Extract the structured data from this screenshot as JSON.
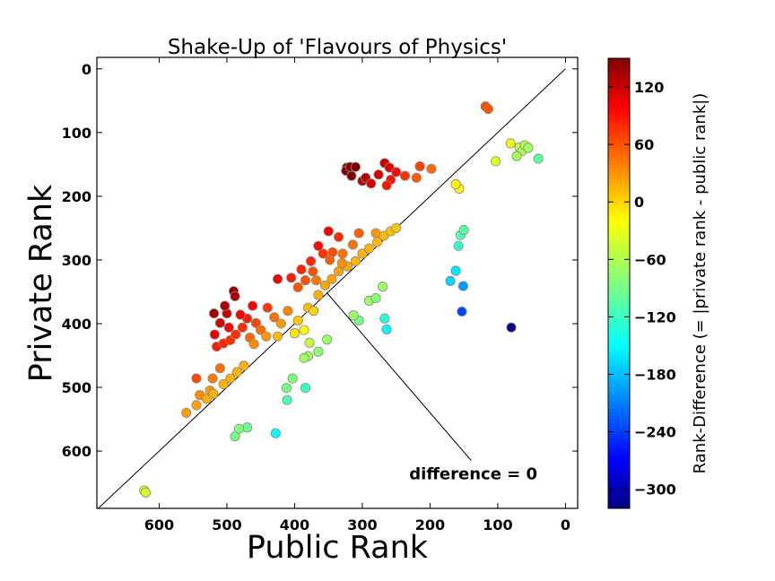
{
  "chart_data": {
    "type": "scatter",
    "title": "Shake-Up of 'Flavours of Physics'",
    "xlabel": "Public Rank",
    "ylabel": "Private Rank",
    "xlim": [
      692,
      -18
    ],
    "ylim": [
      690,
      -18
    ],
    "x_ticks": [
      600,
      500,
      400,
      300,
      200,
      100,
      0
    ],
    "y_ticks": [
      0,
      100,
      200,
      300,
      400,
      500,
      600
    ],
    "reference_line": {
      "label": "difference = 0",
      "from": [
        0,
        0
      ],
      "to": [
        692,
        692
      ]
    },
    "annotation": {
      "text": "difference = 0",
      "arrow_to": [
        352,
        352
      ],
      "text_at": [
        224,
        636
      ]
    },
    "colorbar": {
      "label": "Rank-Difference (= |private rank - public rank|)",
      "range": [
        -320,
        150
      ],
      "ticks": [
        120,
        60,
        0,
        -60,
        -120,
        -180,
        -240,
        -300
      ],
      "colormap": "jet"
    },
    "grid": false,
    "points": [
      {
        "x": 80,
        "y": 406
      },
      {
        "x": 153,
        "y": 381
      },
      {
        "x": 151,
        "y": 341
      },
      {
        "x": 162,
        "y": 317
      },
      {
        "x": 170,
        "y": 333
      },
      {
        "x": 155,
        "y": 261
      },
      {
        "x": 150,
        "y": 253
      },
      {
        "x": 158,
        "y": 278
      },
      {
        "x": 352,
        "y": 425
      },
      {
        "x": 428,
        "y": 572
      },
      {
        "x": 411,
        "y": 520
      },
      {
        "x": 412,
        "y": 501
      },
      {
        "x": 403,
        "y": 486
      },
      {
        "x": 384,
        "y": 501
      },
      {
        "x": 365,
        "y": 444
      },
      {
        "x": 380,
        "y": 451
      },
      {
        "x": 378,
        "y": 430
      },
      {
        "x": 386,
        "y": 454
      },
      {
        "x": 290,
        "y": 364
      },
      {
        "x": 264,
        "y": 409
      },
      {
        "x": 267,
        "y": 392
      },
      {
        "x": 305,
        "y": 395
      },
      {
        "x": 313,
        "y": 387
      },
      {
        "x": 280,
        "y": 360
      },
      {
        "x": 270,
        "y": 342
      },
      {
        "x": 103,
        "y": 145
      },
      {
        "x": 68,
        "y": 123
      },
      {
        "x": 64,
        "y": 129
      },
      {
        "x": 72,
        "y": 137
      },
      {
        "x": 60,
        "y": 120
      },
      {
        "x": 55,
        "y": 124
      },
      {
        "x": 40,
        "y": 141
      },
      {
        "x": 81,
        "y": 117
      },
      {
        "x": 157,
        "y": 188
      },
      {
        "x": 162,
        "y": 181
      },
      {
        "x": 470,
        "y": 563
      },
      {
        "x": 488,
        "y": 577
      },
      {
        "x": 482,
        "y": 565
      },
      {
        "x": 622,
        "y": 662
      },
      {
        "x": 620,
        "y": 665
      },
      {
        "x": 323,
        "y": 155
      },
      {
        "x": 324,
        "y": 160
      },
      {
        "x": 318,
        "y": 154
      },
      {
        "x": 310,
        "y": 154
      },
      {
        "x": 300,
        "y": 176
      },
      {
        "x": 295,
        "y": 171
      },
      {
        "x": 287,
        "y": 180
      },
      {
        "x": 276,
        "y": 166
      },
      {
        "x": 267,
        "y": 148
      },
      {
        "x": 260,
        "y": 155
      },
      {
        "x": 258,
        "y": 174
      },
      {
        "x": 250,
        "y": 162
      },
      {
        "x": 237,
        "y": 168
      },
      {
        "x": 220,
        "y": 171
      },
      {
        "x": 215,
        "y": 153
      },
      {
        "x": 198,
        "y": 157
      },
      {
        "x": 316,
        "y": 168
      },
      {
        "x": 264,
        "y": 183
      },
      {
        "x": 118,
        "y": 59
      },
      {
        "x": 114,
        "y": 63
      },
      {
        "x": 519,
        "y": 384
      },
      {
        "x": 490,
        "y": 349
      },
      {
        "x": 488,
        "y": 357
      },
      {
        "x": 500,
        "y": 384
      },
      {
        "x": 510,
        "y": 399
      },
      {
        "x": 518,
        "y": 417
      },
      {
        "x": 515,
        "y": 436
      },
      {
        "x": 505,
        "y": 431
      },
      {
        "x": 495,
        "y": 426
      },
      {
        "x": 487,
        "y": 417
      },
      {
        "x": 477,
        "y": 406
      },
      {
        "x": 470,
        "y": 392
      },
      {
        "x": 462,
        "y": 372
      },
      {
        "x": 457,
        "y": 399
      },
      {
        "x": 466,
        "y": 422
      },
      {
        "x": 480,
        "y": 386
      },
      {
        "x": 497,
        "y": 406
      },
      {
        "x": 503,
        "y": 372
      },
      {
        "x": 425,
        "y": 330
      },
      {
        "x": 405,
        "y": 328
      },
      {
        "x": 395,
        "y": 343
      },
      {
        "x": 384,
        "y": 332
      },
      {
        "x": 376,
        "y": 302
      },
      {
        "x": 373,
        "y": 318
      },
      {
        "x": 358,
        "y": 290
      },
      {
        "x": 348,
        "y": 300
      },
      {
        "x": 344,
        "y": 288
      },
      {
        "x": 335,
        "y": 264
      },
      {
        "x": 329,
        "y": 290
      },
      {
        "x": 314,
        "y": 276
      },
      {
        "x": 305,
        "y": 258
      },
      {
        "x": 280,
        "y": 258
      },
      {
        "x": 350,
        "y": 255
      },
      {
        "x": 365,
        "y": 278
      },
      {
        "x": 390,
        "y": 315
      },
      {
        "x": 545,
        "y": 486
      },
      {
        "x": 521,
        "y": 486
      },
      {
        "x": 540,
        "y": 512
      },
      {
        "x": 510,
        "y": 470
      },
      {
        "x": 525,
        "y": 505
      },
      {
        "x": 440,
        "y": 375
      },
      {
        "x": 430,
        "y": 390
      },
      {
        "x": 420,
        "y": 400
      },
      {
        "x": 410,
        "y": 380
      },
      {
        "x": 395,
        "y": 395
      },
      {
        "x": 380,
        "y": 375
      },
      {
        "x": 365,
        "y": 355
      },
      {
        "x": 355,
        "y": 340
      },
      {
        "x": 345,
        "y": 330
      },
      {
        "x": 335,
        "y": 318
      },
      {
        "x": 322,
        "y": 310
      },
      {
        "x": 310,
        "y": 302
      },
      {
        "x": 300,
        "y": 290
      },
      {
        "x": 290,
        "y": 282
      },
      {
        "x": 278,
        "y": 272
      },
      {
        "x": 268,
        "y": 262
      },
      {
        "x": 258,
        "y": 255
      },
      {
        "x": 250,
        "y": 250
      },
      {
        "x": 450,
        "y": 410
      },
      {
        "x": 425,
        "y": 420
      },
      {
        "x": 400,
        "y": 415
      },
      {
        "x": 386,
        "y": 410
      },
      {
        "x": 372,
        "y": 380
      },
      {
        "x": 560,
        "y": 540
      },
      {
        "x": 545,
        "y": 528
      },
      {
        "x": 530,
        "y": 518
      },
      {
        "x": 520,
        "y": 510
      },
      {
        "x": 505,
        "y": 495
      },
      {
        "x": 495,
        "y": 486
      },
      {
        "x": 485,
        "y": 476
      },
      {
        "x": 475,
        "y": 466
      },
      {
        "x": 460,
        "y": 432
      },
      {
        "x": 442,
        "y": 420
      },
      {
        "x": 368,
        "y": 332
      },
      {
        "x": 330,
        "y": 305
      }
    ]
  }
}
